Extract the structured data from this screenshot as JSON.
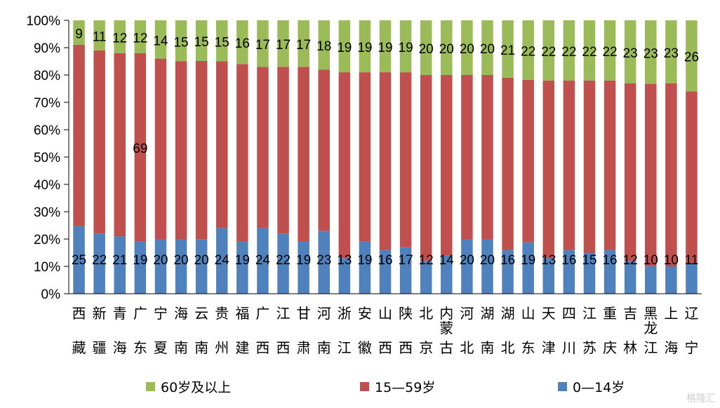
{
  "chart_data": {
    "type": "bar",
    "stacked": true,
    "percent": true,
    "categories": [
      "西藏",
      "新疆",
      "青海",
      "广东",
      "宁夏",
      "海南",
      "云南",
      "贵州",
      "福建",
      "广西",
      "江西",
      "甘肃",
      "河南",
      "浙江",
      "安徽",
      "山西",
      "陕西",
      "北京",
      "内蒙古",
      "河北",
      "湖南",
      "湖北",
      "山东",
      "天津",
      "四川",
      "江苏",
      "重庆",
      "吉林",
      "黑龙江",
      "上海",
      "辽宁"
    ],
    "category_label_lines": [
      [
        "西",
        "藏"
      ],
      [
        "新",
        "疆"
      ],
      [
        "青",
        "海"
      ],
      [
        "广",
        "东"
      ],
      [
        "宁",
        "夏"
      ],
      [
        "海",
        "南"
      ],
      [
        "云",
        "南"
      ],
      [
        "贵",
        "州"
      ],
      [
        "福",
        "建"
      ],
      [
        "广",
        "西"
      ],
      [
        "江",
        "西"
      ],
      [
        "甘",
        "肃"
      ],
      [
        "河",
        "南"
      ],
      [
        "浙",
        "江"
      ],
      [
        "安",
        "徽"
      ],
      [
        "山",
        "西"
      ],
      [
        "陕",
        "西"
      ],
      [
        "北",
        "京"
      ],
      [
        "内",
        "蒙",
        "古"
      ],
      [
        "河",
        "北"
      ],
      [
        "湖",
        "南"
      ],
      [
        "湖",
        "北"
      ],
      [
        "山",
        "东"
      ],
      [
        "天",
        "津"
      ],
      [
        "四",
        "川"
      ],
      [
        "江",
        "苏"
      ],
      [
        "重",
        "庆"
      ],
      [
        "吉",
        "林"
      ],
      [
        "黑",
        "龙",
        "江"
      ],
      [
        "上",
        "海"
      ],
      [
        "辽",
        "宁"
      ]
    ],
    "series": [
      {
        "name": "0—14岁",
        "color": "#4f81bd",
        "values": [
          25,
          22,
          21,
          19,
          20,
          20,
          20,
          24,
          19,
          24,
          22,
          19,
          23,
          13,
          19,
          16,
          17,
          12,
          14,
          20,
          20,
          16,
          19,
          13,
          16,
          15,
          16,
          12,
          10,
          10,
          11
        ]
      },
      {
        "name": "15—59岁",
        "color": "#c0504d",
        "values": [
          67,
          67,
          67,
          69,
          66,
          65,
          66,
          61,
          65,
          59,
          61,
          64,
          59,
          68,
          62,
          65,
          64,
          68,
          66,
          60,
          60,
          63,
          60,
          65,
          62,
          63,
          62,
          65,
          66,
          67,
          63
        ]
      },
      {
        "name": "60岁及以上",
        "color": "#9bbb59",
        "values": [
          9,
          11,
          12,
          12,
          14,
          15,
          15,
          15,
          16,
          17,
          17,
          17,
          18,
          19,
          19,
          19,
          19,
          20,
          20,
          20,
          20,
          21,
          22,
          22,
          22,
          22,
          22,
          23,
          23,
          23,
          26
        ]
      }
    ],
    "ylim": [
      0,
      100
    ],
    "yticks": [
      "0%",
      "10%",
      "20%",
      "30%",
      "40%",
      "50%",
      "60%",
      "70%",
      "80%",
      "90%",
      "100%"
    ],
    "data_labels_shown": {
      "0—14岁": "all",
      "60岁及以上": "all",
      "15—59岁": [
        3
      ]
    },
    "legend_order": [
      "60岁及以上",
      "15—59岁",
      "0—14岁"
    ],
    "legend_position": "bottom",
    "grid": false
  },
  "watermark": "格隆汇"
}
